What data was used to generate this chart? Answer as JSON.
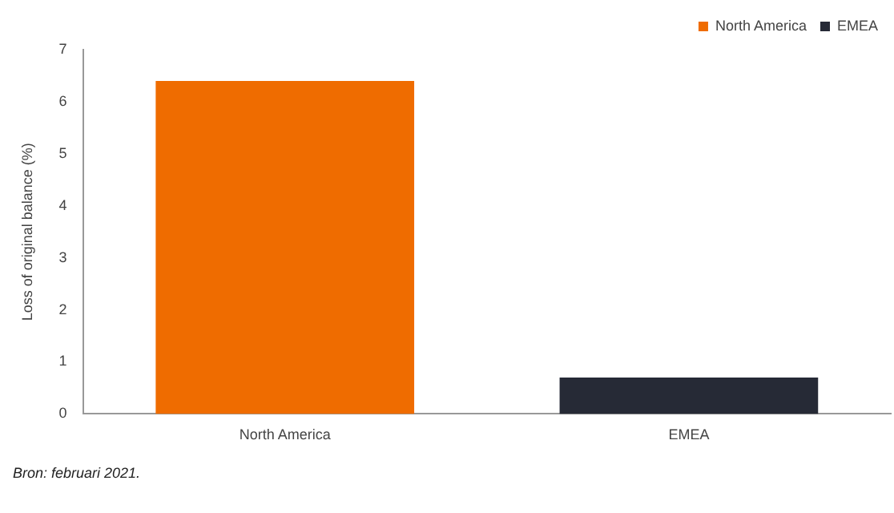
{
  "chart_data": {
    "type": "bar",
    "ylabel": "Loss of original balance (%)",
    "categories": [
      "North America",
      "EMEA"
    ],
    "series": [
      {
        "name": "North America",
        "color": "#ef6c00",
        "values": [
          6.4,
          null
        ]
      },
      {
        "name": "EMEA",
        "color": "#262a36",
        "values": [
          null,
          0.7
        ]
      }
    ],
    "ylim": [
      0,
      7
    ],
    "yticks": [
      0,
      1,
      2,
      3,
      4,
      5,
      6,
      7
    ],
    "grid": false,
    "legend": "top right",
    "annotations": [
      "Bron: februari 2021."
    ]
  }
}
